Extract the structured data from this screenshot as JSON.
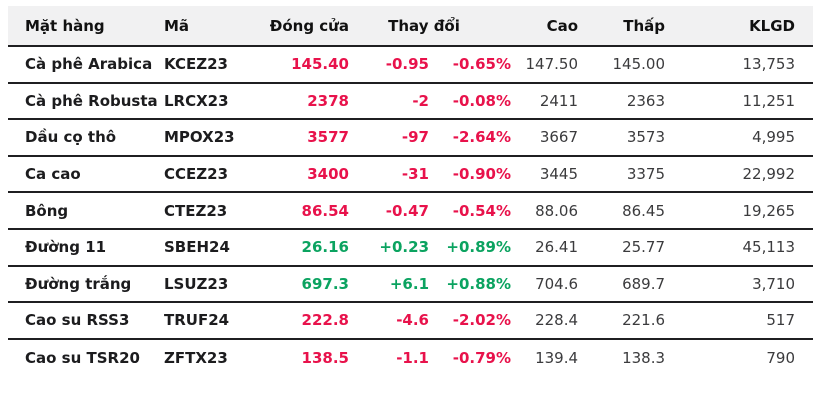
{
  "colors": {
    "down": "#e8124b",
    "up": "#0ba360",
    "header_background": "#f1f1f2",
    "separator": "#1f1f21"
  },
  "table": {
    "headers": {
      "commodity": "Mặt hàng",
      "code": "Mã",
      "close": "Đóng cửa",
      "change": "Thay đổi",
      "high": "Cao",
      "low": "Thấp",
      "volume": "KLGD"
    },
    "rows": [
      {
        "name": "Cà phê Arabica",
        "code": "KCEZ23",
        "close": "145.40",
        "change": "-0.95",
        "change_pct": "-0.65%",
        "high": "147.50",
        "low": "145.00",
        "volume": "13,753",
        "direction": "down"
      },
      {
        "name": "Cà phê Robusta",
        "code": "LRCX23",
        "close": "2378",
        "change": "-2",
        "change_pct": "-0.08%",
        "high": "2411",
        "low": "2363",
        "volume": "11,251",
        "direction": "down"
      },
      {
        "name": "Dầu cọ thô",
        "code": "MPOX23",
        "close": "3577",
        "change": "-97",
        "change_pct": "-2.64%",
        "high": "3667",
        "low": "3573",
        "volume": "4,995",
        "direction": "down"
      },
      {
        "name": "Ca cao",
        "code": "CCEZ23",
        "close": "3400",
        "change": "-31",
        "change_pct": "-0.90%",
        "high": "3445",
        "low": "3375",
        "volume": "22,992",
        "direction": "down"
      },
      {
        "name": "Bông",
        "code": "CTEZ23",
        "close": "86.54",
        "change": "-0.47",
        "change_pct": "-0.54%",
        "high": "88.06",
        "low": "86.45",
        "volume": "19,265",
        "direction": "down"
      },
      {
        "name": "Đường 11",
        "code": "SBEH24",
        "close": "26.16",
        "change": "+0.23",
        "change_pct": "+0.89%",
        "high": "26.41",
        "low": "25.77",
        "volume": "45,113",
        "direction": "up"
      },
      {
        "name": "Đường trắng",
        "code": "LSUZ23",
        "close": "697.3",
        "change": "+6.1",
        "change_pct": "+0.88%",
        "high": "704.6",
        "low": "689.7",
        "volume": "3,710",
        "direction": "up"
      },
      {
        "name": "Cao su RSS3",
        "code": "TRUF24",
        "close": "222.8",
        "change": "-4.6",
        "change_pct": "-2.02%",
        "high": "228.4",
        "low": "221.6",
        "volume": "517",
        "direction": "down"
      },
      {
        "name": "Cao su TSR20",
        "code": "ZFTX23",
        "close": "138.5",
        "change": "-1.1",
        "change_pct": "-0.79%",
        "high": "139.4",
        "low": "138.3",
        "volume": "790",
        "direction": "down"
      }
    ]
  }
}
